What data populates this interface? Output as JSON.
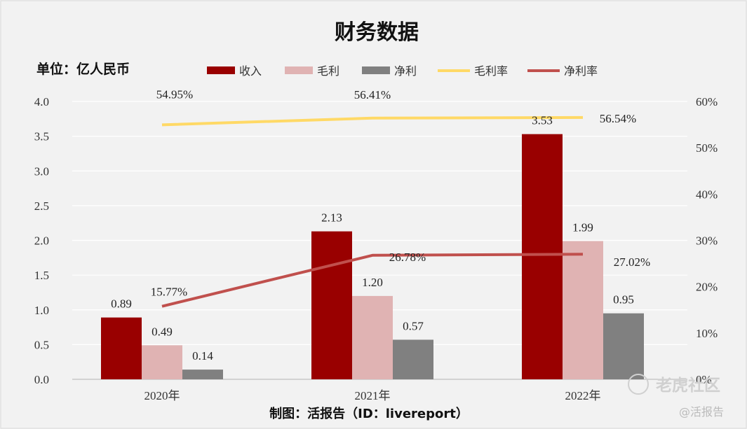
{
  "footer": "制图：活报告（ID：livereport）",
  "watermark": {
    "main": "老虎社区",
    "sub": "@活报告"
  },
  "colors": {
    "revenue": "#990000",
    "gross": "#e0b3b3",
    "net": "#808080",
    "gross_margin": "#ffd966",
    "net_margin": "#c0504d",
    "background": "#f2f2f2"
  },
  "chart_data": {
    "type": "bar",
    "title": "财务数据",
    "unit_label": "单位：亿人民币",
    "categories": [
      "2020年",
      "2021年",
      "2022年"
    ],
    "series": [
      {
        "name": "收入",
        "kind": "bar",
        "axis": "left",
        "values": [
          0.89,
          2.13,
          3.53
        ],
        "labels": [
          "0.89",
          "2.13",
          "3.53"
        ]
      },
      {
        "name": "毛利",
        "kind": "bar",
        "axis": "left",
        "values": [
          0.49,
          1.2,
          1.99
        ],
        "labels": [
          "0.49",
          "1.20",
          "1.99"
        ]
      },
      {
        "name": "净利",
        "kind": "bar",
        "axis": "left",
        "values": [
          0.14,
          0.57,
          0.95
        ],
        "labels": [
          "0.14",
          "0.57",
          "0.95"
        ]
      },
      {
        "name": "毛利率",
        "kind": "line",
        "axis": "right",
        "values": [
          54.95,
          56.41,
          56.54
        ],
        "labels": [
          "54.95%",
          "56.41%",
          "56.54%"
        ]
      },
      {
        "name": "净利率",
        "kind": "line",
        "axis": "right",
        "values": [
          15.77,
          26.78,
          27.02
        ],
        "labels": [
          "15.77%",
          "26.78%",
          "27.02%"
        ]
      }
    ],
    "y_left": {
      "range": [
        0,
        4.0
      ],
      "ticks": [
        "0.0",
        "0.5",
        "1.0",
        "1.5",
        "2.0",
        "2.5",
        "3.0",
        "3.5",
        "4.0"
      ]
    },
    "y_right": {
      "range": [
        0,
        60
      ],
      "ticks": [
        "0%",
        "10%",
        "20%",
        "30%",
        "40%",
        "50%",
        "60%"
      ]
    },
    "grid": true,
    "legend_position": "top"
  }
}
